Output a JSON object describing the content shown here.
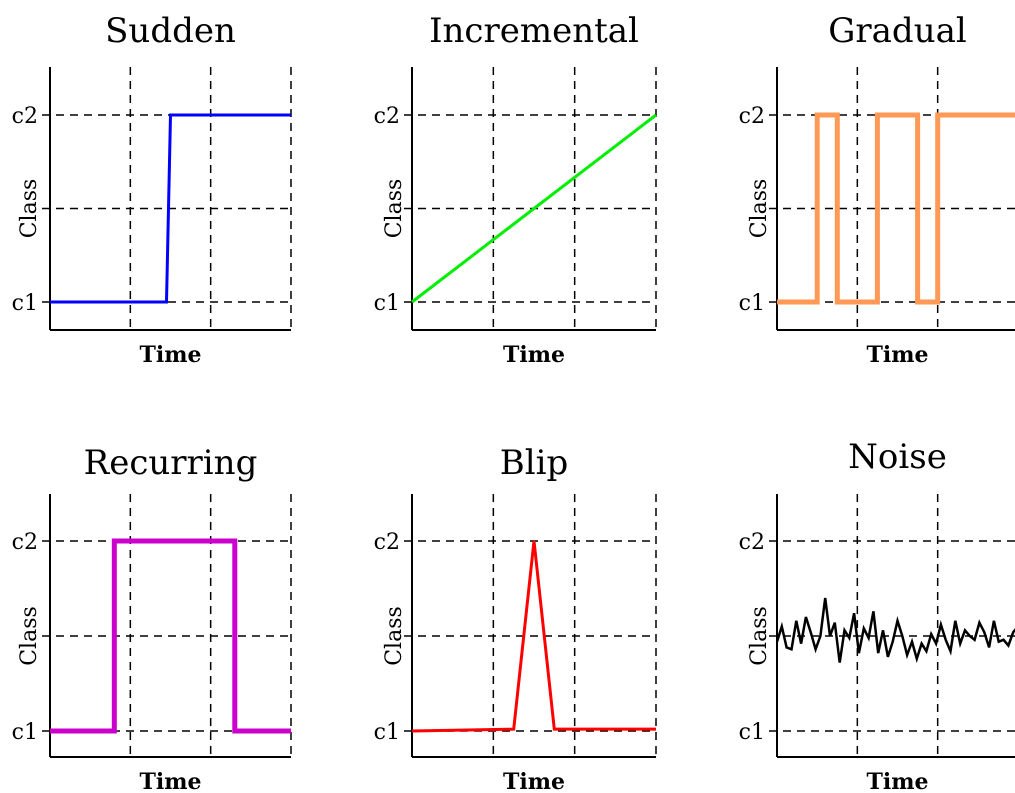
{
  "chart_data": [
    {
      "type": "line",
      "title": "Sudden",
      "xlabel": "Time",
      "ylabel": "Class",
      "yticks": [
        "c1",
        "c2"
      ],
      "ylim": [
        0,
        1
      ],
      "xlim": [
        0,
        3
      ],
      "grid": true,
      "color": "#0000ff",
      "series": [
        {
          "x": [
            0,
            1.45,
            1.5,
            3
          ],
          "y": [
            0,
            0,
            1,
            1
          ]
        }
      ]
    },
    {
      "type": "line",
      "title": "Incremental",
      "xlabel": "Time",
      "ylabel": "Class",
      "yticks": [
        "c1",
        "c2"
      ],
      "ylim": [
        0,
        1
      ],
      "xlim": [
        0,
        3
      ],
      "grid": true,
      "color": "#00ee00",
      "series": [
        {
          "x": [
            0,
            3
          ],
          "y": [
            0,
            1
          ]
        }
      ]
    },
    {
      "type": "line",
      "title": "Gradual",
      "xlabel": "Time",
      "ylabel": "Class",
      "yticks": [
        "c1",
        "c2"
      ],
      "ylim": [
        0,
        1
      ],
      "xlim": [
        0,
        3
      ],
      "grid": true,
      "color": "#ff9955",
      "series": [
        {
          "x": [
            0,
            0.5,
            0.5,
            0.75,
            0.75,
            1.25,
            1.25,
            1.75,
            1.75,
            2.0,
            2.0,
            3
          ],
          "y": [
            0,
            0,
            1,
            1,
            0,
            0,
            1,
            1,
            0,
            0,
            1,
            1
          ]
        }
      ]
    },
    {
      "type": "line",
      "title": "Recurring",
      "xlabel": "Time",
      "ylabel": "Class",
      "yticks": [
        "c1",
        "c2"
      ],
      "ylim": [
        0,
        1
      ],
      "xlim": [
        0,
        3
      ],
      "grid": true,
      "color": "#cc00cc",
      "series": [
        {
          "x": [
            0,
            0.8,
            0.8,
            2.3,
            2.3,
            3
          ],
          "y": [
            0,
            0,
            1,
            1,
            0,
            0
          ]
        }
      ]
    },
    {
      "type": "line",
      "title": "Blip",
      "xlabel": "Time",
      "ylabel": "Class",
      "yticks": [
        "c1",
        "c2"
      ],
      "ylim": [
        0,
        1
      ],
      "xlim": [
        0,
        3
      ],
      "grid": true,
      "color": "#ff0000",
      "series": [
        {
          "x": [
            0,
            1.25,
            1.5,
            1.75,
            3
          ],
          "y": [
            0,
            0.01,
            1,
            0.01,
            0.01
          ]
        }
      ]
    },
    {
      "type": "line",
      "title": "Noise",
      "xlabel": "Time",
      "ylabel": "Class",
      "yticks": [
        "c1",
        "c2"
      ],
      "ylim": [
        0,
        1
      ],
      "xlim": [
        0,
        3
      ],
      "grid": true,
      "color": "#000000",
      "series": [
        {
          "x": [
            0.0,
            0.06,
            0.12,
            0.18,
            0.24,
            0.3,
            0.36,
            0.42,
            0.48,
            0.54,
            0.6,
            0.66,
            0.72,
            0.78,
            0.84,
            0.9,
            0.96,
            1.02,
            1.08,
            1.14,
            1.2,
            1.26,
            1.32,
            1.38,
            1.44,
            1.5,
            1.56,
            1.62,
            1.68,
            1.74,
            1.8,
            1.86,
            1.92,
            1.98,
            2.04,
            2.1,
            2.16,
            2.22,
            2.28,
            2.34,
            2.4,
            2.46,
            2.52,
            2.58,
            2.64,
            2.7,
            2.76,
            2.82,
            2.88,
            2.94,
            3.0
          ],
          "y": [
            0.47,
            0.55,
            0.44,
            0.43,
            0.58,
            0.46,
            0.6,
            0.52,
            0.43,
            0.5,
            0.7,
            0.5,
            0.57,
            0.36,
            0.53,
            0.49,
            0.62,
            0.41,
            0.54,
            0.49,
            0.63,
            0.41,
            0.53,
            0.39,
            0.47,
            0.58,
            0.5,
            0.4,
            0.47,
            0.38,
            0.46,
            0.42,
            0.51,
            0.46,
            0.56,
            0.48,
            0.42,
            0.58,
            0.46,
            0.53,
            0.5,
            0.48,
            0.57,
            0.52,
            0.44,
            0.58,
            0.47,
            0.48,
            0.45,
            0.52,
            0.55
          ]
        }
      ]
    }
  ]
}
